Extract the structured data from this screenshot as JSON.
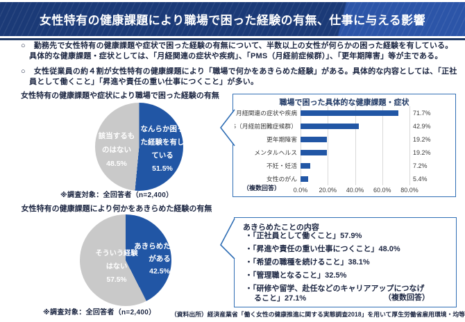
{
  "header": {
    "title": "女性特有の健康課題により職場で困った経験の有無、仕事に与える影響"
  },
  "summary": {
    "marker": "○",
    "bullets": [
      "勤務先で女性特有の健康課題や症状で困った経験の有無について、半数以上の女性が何らかの困った経験を有している。具体的な健康課題・症状としては、「月経関連の症状や疾病」、「PMS（月経前症候群）」、「更年期障害」等が主である。",
      "女性従業員の約４割が女性特有の健康課題により「職場で何かをあきらめた経験」がある。具体的な内容としては、「正社員として働くこと」「昇進や責任の重い仕事につくこと」が多い。"
    ]
  },
  "chart_data": [
    {
      "id": "pie-trouble",
      "type": "pie",
      "title": "女性特有の健康課題や症状により職場で困った経験の有無",
      "slices": [
        {
          "label": "なんらか困った経験を有している",
          "label_wrapped": "なんらか困っ\nた経験を有し\nている",
          "pct_label": "51.5%",
          "value": 51.5,
          "color": "#2156A5"
        },
        {
          "label": "該当するものはない",
          "label_wrapped": "該当するも\nのはない",
          "pct_label": "48.5%",
          "value": 48.5,
          "color": "#C9C9C9"
        }
      ],
      "note": "※調査対象：全回答者（n=2,400）"
    },
    {
      "id": "pie-giveup",
      "type": "pie",
      "title": "女性特有の健康課題により何かをあきらめた経験の有無",
      "slices": [
        {
          "label": "あきらめた経験がある",
          "label_wrapped": "あきらめた経験\nがある",
          "pct_label": "42.5%",
          "value": 42.5,
          "color": "#2156A5"
        },
        {
          "label": "そういう経験はない",
          "label_wrapped": "そういう経験\nはない",
          "pct_label": "57.5%",
          "value": 57.5,
          "color": "#C9C9C9"
        }
      ],
      "note": "※調査対象：全回答者（n=2,400）"
    },
    {
      "id": "bar-issues",
      "type": "bar",
      "title": "職場で困った具体的な健康課題・症状",
      "categories": [
        "月経関連の症状や疾病",
        "PMS（月経前困難症候群）",
        "更年期障害",
        "メンタルヘルス",
        "不妊・妊活",
        "女性のがん"
      ],
      "values": [
        71.7,
        42.9,
        19.2,
        19.2,
        7.2,
        5.4
      ],
      "value_labels": [
        "71.7%",
        "42.9%",
        "19.2%",
        "19.2%",
        "7.2%",
        "5.4%"
      ],
      "xlim": [
        0,
        80
      ],
      "x_ticks": [
        "0.0%",
        "20.0%",
        "40.0%",
        "60.0%",
        "80.0%"
      ],
      "grid": true,
      "legend": "none",
      "bar_color": "#2156A5",
      "note": "（複数回答）"
    },
    {
      "id": "giveup-details",
      "type": "table",
      "title": "あきらめたことの内容",
      "marker": "・",
      "items": [
        "「正社員として働くこと」57.9%",
        "「昇進や責任の重い仕事につくこと」48.0%",
        "「希望の職種を続けること」38.1%",
        "「管理職となること」32.5%",
        "「研修や留学、赴任などのキャリアアップにつなげること」27.1%"
      ],
      "note": "（複数回答）"
    }
  ],
  "footer": {
    "source": "（資料出所）経済産業省「働く女性の健康推進に関する実態調査2018」を用いて厚生労働省雇用環境・均等局作成"
  },
  "colors": {
    "header_navy": "#1B3A77",
    "header_light": "#2C55A8",
    "divider_navy": "#1F3864",
    "accent_blue": "#2156A5",
    "pie_gray": "#C9C9C9",
    "box_border": "#2E6DB4",
    "text_dark": "#1A2440"
  }
}
